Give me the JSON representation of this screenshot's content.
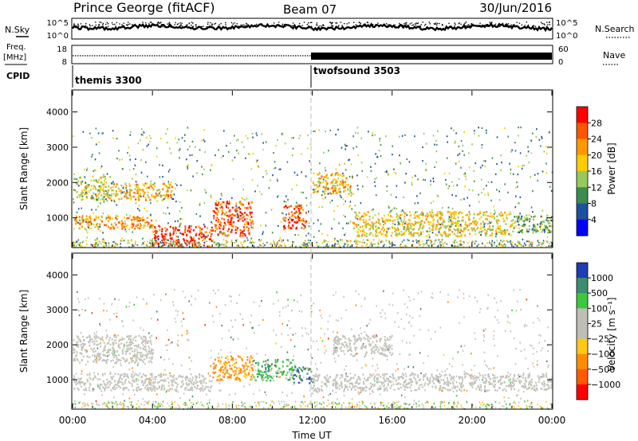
{
  "header": {
    "site": "Prince George (fitACF)",
    "beam": "Beam 07",
    "date": "30/Jun/2016"
  },
  "strip_labels": {
    "nsky": "N.Sky",
    "freq_line1": "Freq.",
    "freq_line2": "[MHz]",
    "cpid": "CPID",
    "nsearch": "N.Search",
    "nave": "Nave"
  },
  "noise_axis": {
    "left_top": "10^5",
    "left_bottom": "10^0",
    "right_top": "10^5",
    "right_bottom": "10^0"
  },
  "freq_axis": {
    "left_top": "18",
    "left_bottom": "8",
    "right_top": "60",
    "right_bottom": "0"
  },
  "cpid_programs": [
    {
      "name": "themis 3300",
      "start_hour": 0
    },
    {
      "name": "twofsound 3503",
      "start_hour": 12
    }
  ],
  "power_colorbar": {
    "label": "Power [dB]",
    "ticks": [
      "28",
      "24",
      "20",
      "16",
      "12",
      "8",
      "4"
    ],
    "colors": [
      "#ff0000",
      "#ff5500",
      "#ff9900",
      "#ffcc00",
      "#96c85a",
      "#3c8c50",
      "#1e50a0",
      "#0000ff"
    ]
  },
  "velocity_colorbar": {
    "label": "Velocity [m s⁻¹]",
    "ticks": [
      "1000",
      "500",
      "100",
      "25",
      "−25",
      "−100",
      "−500",
      "−1000"
    ],
    "colors": [
      "#1e3cb4",
      "#3c8c6e",
      "#3cc83c",
      "#bebeb4",
      "#bebeb4",
      "#ffc814",
      "#ff8c00",
      "#ff5a00",
      "#ff0000"
    ]
  },
  "axes": {
    "ylabel": "Slant Range [km]",
    "xlabel": "Time UT",
    "yticks": [
      "1000",
      "2000",
      "3000",
      "4000"
    ],
    "xticks": [
      "00:00",
      "04:00",
      "08:00",
      "12:00",
      "16:00",
      "20:00",
      "00:00"
    ]
  },
  "chart_data": [
    {
      "type": "heatmap",
      "name": "Power",
      "x_range_hours": [
        0,
        24
      ],
      "y_range_km": [
        180,
        4600
      ],
      "color_scale": [
        0,
        30
      ],
      "regions": [
        {
          "t0": 0.0,
          "t1": 2.0,
          "r0": 1500,
          "r1": 2200,
          "value": 16
        },
        {
          "t0": 2.0,
          "t1": 5.0,
          "r0": 1500,
          "r1": 2000,
          "value": 20
        },
        {
          "t0": 0.0,
          "t1": 4.0,
          "r0": 700,
          "r1": 1100,
          "value": 22
        },
        {
          "t0": 4.0,
          "t1": 7.0,
          "r0": 200,
          "r1": 800,
          "value": 28
        },
        {
          "t0": 7.0,
          "t1": 9.0,
          "r0": 500,
          "r1": 1500,
          "value": 26
        },
        {
          "t0": 10.5,
          "t1": 11.7,
          "r0": 700,
          "r1": 1400,
          "value": 27
        },
        {
          "t0": 12.0,
          "t1": 14.0,
          "r0": 1700,
          "r1": 2300,
          "value": 20
        },
        {
          "t0": 14.0,
          "t1": 22.0,
          "r0": 500,
          "r1": 1200,
          "value": 18
        },
        {
          "t0": 22.0,
          "t1": 24.0,
          "r0": 600,
          "r1": 1100,
          "value": 12
        }
      ]
    },
    {
      "type": "heatmap",
      "name": "Velocity",
      "x_range_hours": [
        0,
        24
      ],
      "y_range_km": [
        180,
        4600
      ],
      "color_scale": [
        -1000,
        1000
      ],
      "regions": [
        {
          "t0": 0.0,
          "t1": 4.0,
          "r0": 1500,
          "r1": 2300,
          "value": 0
        },
        {
          "t0": 0.0,
          "t1": 7.0,
          "r0": 700,
          "r1": 1200,
          "value": 0
        },
        {
          "t0": 7.0,
          "t1": 9.0,
          "r0": 1000,
          "r1": 1700,
          "value": -300
        },
        {
          "t0": 9.0,
          "t1": 11.0,
          "r0": 1000,
          "r1": 1600,
          "value": 200
        },
        {
          "t0": 11.0,
          "t1": 12.0,
          "r0": 900,
          "r1": 1400,
          "value": 600
        },
        {
          "t0": 12.0,
          "t1": 24.0,
          "r0": 700,
          "r1": 1200,
          "value": 0
        },
        {
          "t0": 13.0,
          "t1": 16.0,
          "r0": 1700,
          "r1": 2300,
          "value": 0
        }
      ]
    }
  ]
}
